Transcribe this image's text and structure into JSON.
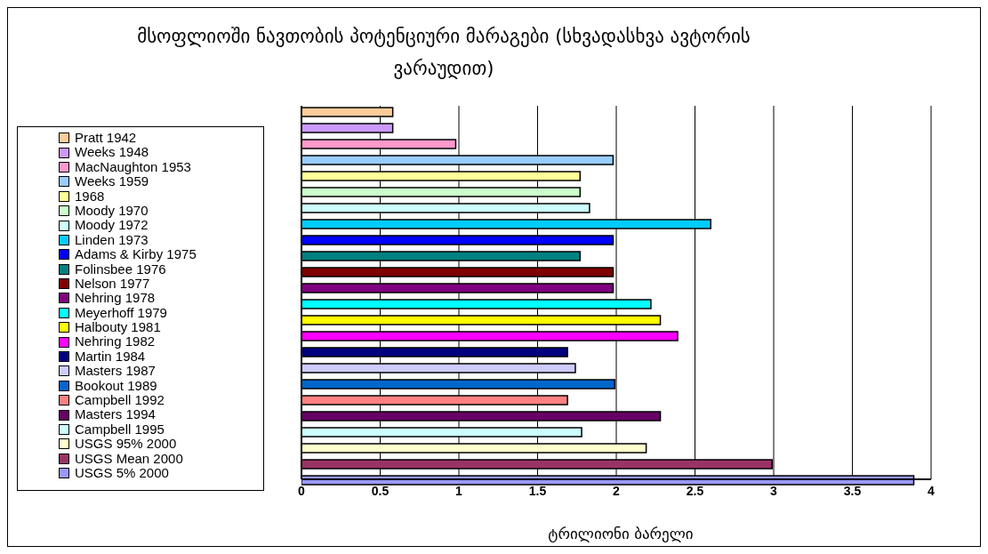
{
  "chart_data": {
    "type": "bar",
    "orientation": "horizontal",
    "title": "მსოფლიოში ნავთობის პოტენციური მარაგები (სხვადასხვა ავტორის ვარაუდით)",
    "xlabel": "ტრილიონი ბარელი",
    "categories": [
      null
    ],
    "xlim": [
      0,
      4
    ],
    "xticks": [
      0,
      0.5,
      1,
      1.5,
      2,
      2.5,
      3,
      3.5,
      4
    ],
    "grid": "x",
    "legend": "left",
    "series": [
      {
        "name": "Pratt 1942",
        "color": "#ffcc99",
        "values": [
          0.58
        ]
      },
      {
        "name": "Weeks 1948",
        "color": "#cc99ff",
        "values": [
          0.58
        ]
      },
      {
        "name": "MacNaughton 1953",
        "color": "#ff99cc",
        "values": [
          0.98
        ]
      },
      {
        "name": "Weeks 1959",
        "color": "#99ccff",
        "values": [
          1.98
        ]
      },
      {
        "name": "1968",
        "color": "#ffff99",
        "values": [
          1.77
        ]
      },
      {
        "name": "Moody 1970",
        "color": "#ccffcc",
        "values": [
          1.77
        ]
      },
      {
        "name": "Moody 1972",
        "color": "#ccffff",
        "values": [
          1.83
        ]
      },
      {
        "name": "Linden 1973",
        "color": "#00ccff",
        "values": [
          2.6
        ]
      },
      {
        "name": "Adams & Kirby 1975",
        "color": "#0000ff",
        "values": [
          1.98
        ]
      },
      {
        "name": "Folinsbee 1976",
        "color": "#008080",
        "values": [
          1.77
        ]
      },
      {
        "name": "Nelson 1977",
        "color": "#800000",
        "values": [
          1.98
        ]
      },
      {
        "name": "Nehring 1978",
        "color": "#800080",
        "values": [
          1.98
        ]
      },
      {
        "name": "Meyerhoff 1979",
        "color": "#00ffff",
        "values": [
          2.22
        ]
      },
      {
        "name": "Halbouty 1981",
        "color": "#ffff00",
        "values": [
          2.28
        ]
      },
      {
        "name": "Nehring 1982",
        "color": "#ff00ff",
        "values": [
          2.39
        ]
      },
      {
        "name": "Martin 1984",
        "color": "#000080",
        "values": [
          1.69
        ]
      },
      {
        "name": "Masters 1987",
        "color": "#ccccff",
        "values": [
          1.74
        ]
      },
      {
        "name": "Bookout 1989",
        "color": "#0066cc",
        "values": [
          1.99
        ]
      },
      {
        "name": "Campbell 1992",
        "color": "#ff8080",
        "values": [
          1.69
        ]
      },
      {
        "name": "Masters 1994",
        "color": "#660066",
        "values": [
          2.28
        ]
      },
      {
        "name": "Campbell 1995",
        "color": "#ccffff",
        "values": [
          1.78
        ]
      },
      {
        "name": "USGS 95% 2000",
        "color": "#ffffcc",
        "values": [
          2.19
        ]
      },
      {
        "name": "USGS Mean 2000",
        "color": "#993366",
        "values": [
          2.99
        ]
      },
      {
        "name": "USGS 5% 2000",
        "color": "#9999ff",
        "values": [
          3.89
        ]
      }
    ]
  }
}
